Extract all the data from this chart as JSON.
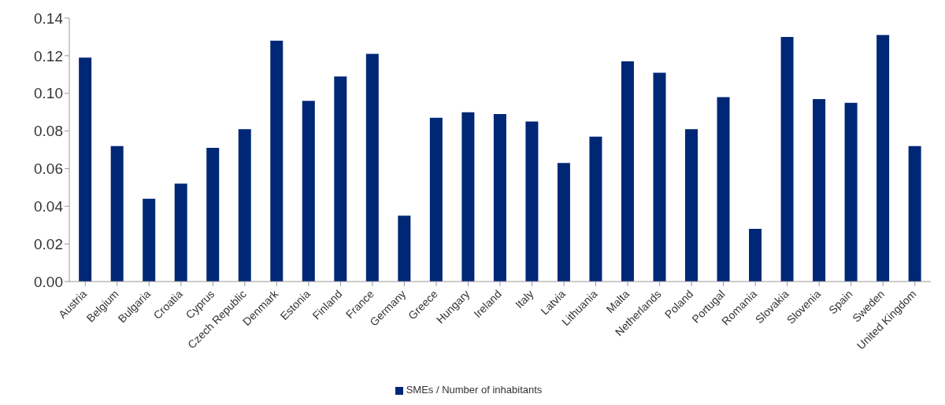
{
  "chart_data": {
    "type": "bar",
    "categories": [
      "Austria",
      "Belgium",
      "Bulgaria",
      "Croatia",
      "Cyprus",
      "Czech Republic",
      "Denmark",
      "Estonia",
      "Finland",
      "France",
      "Germany",
      "Greece",
      "Hungary",
      "Ireland",
      "Italy",
      "Latvia",
      "Lithuania",
      "Malta",
      "Netherlands",
      "Poland",
      "Portugal",
      "Romania",
      "Slovakia",
      "Slovenia",
      "Spain",
      "Sweden",
      "United Kingdom"
    ],
    "series": [
      {
        "name": "SMEs /  Number of inhabitants",
        "color": "#002776",
        "values": [
          0.119,
          0.072,
          0.044,
          0.052,
          0.071,
          0.081,
          0.128,
          0.096,
          0.109,
          0.121,
          0.035,
          0.087,
          0.09,
          0.089,
          0.085,
          0.063,
          0.077,
          0.117,
          0.111,
          0.081,
          0.098,
          0.028,
          0.13,
          0.097,
          0.095,
          0.131,
          0.072
        ]
      }
    ],
    "ylim": [
      0,
      0.14
    ],
    "yticks": [
      {
        "value": 0,
        "label": "0.00"
      },
      {
        "value": 0.02,
        "label": "0.02"
      },
      {
        "value": 0.04,
        "label": "0.04"
      },
      {
        "value": 0.06,
        "label": "0.06"
      },
      {
        "value": 0.08,
        "label": "0.08"
      },
      {
        "value": 0.1,
        "label": "0.10"
      },
      {
        "value": 0.12,
        "label": "0.12"
      },
      {
        "value": 0.14,
        "label": "0.14"
      }
    ],
    "grid": false,
    "legend": "bottom"
  }
}
